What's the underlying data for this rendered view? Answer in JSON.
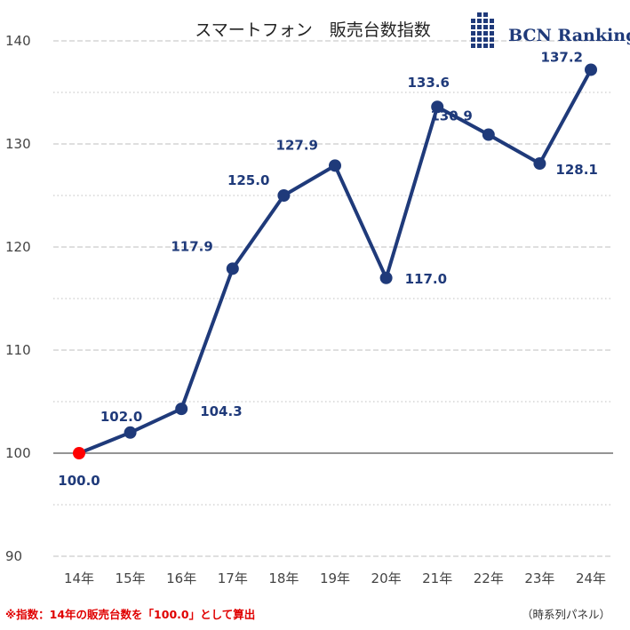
{
  "chart_data": {
    "type": "line",
    "title": "スマートフォン　販売台数指数",
    "categories": [
      "14年",
      "15年",
      "16年",
      "17年",
      "18年",
      "19年",
      "20年",
      "21年",
      "22年",
      "23年",
      "24年"
    ],
    "values": [
      100.0,
      102.0,
      104.3,
      117.9,
      125.0,
      127.9,
      117.0,
      133.6,
      130.9,
      128.1,
      137.2
    ],
    "data_labels": [
      "100.0",
      "102.0",
      "104.3",
      "117.9",
      "125.0",
      "127.9",
      "117.0",
      "133.6",
      "130.9",
      "128.1",
      "137.2"
    ],
    "ylim": [
      90,
      140
    ],
    "yticks": [
      "90",
      "100",
      "110",
      "120",
      "130",
      "140"
    ],
    "xlabel": "",
    "ylabel": "",
    "base_point_index": 0,
    "colors": {
      "line": "#1f3a7a",
      "marker": "#1f3a7a",
      "base_marker": "#ff0000",
      "label": "#1f3a7a",
      "grid": "#bfbfbf",
      "baseline": "#555555"
    }
  },
  "logo": {
    "text": "BCN Ranking"
  },
  "footnote": "※指数：14年の販売台数を「100.0」として算出",
  "source": "（時系列パネル）"
}
